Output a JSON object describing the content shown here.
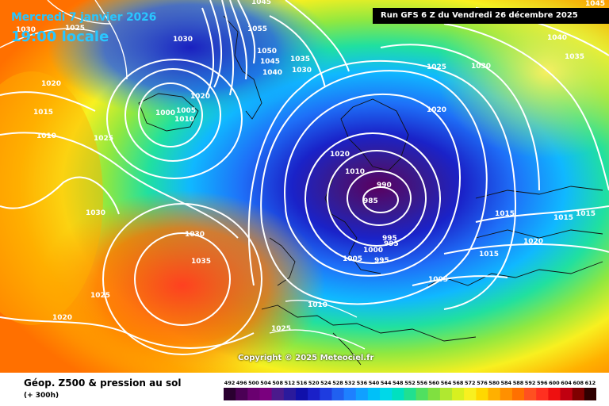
{
  "map": {
    "title_date": "Mercredi 7 janvier 2026",
    "title_time": "19:00 locale",
    "run_info": "Run GFS 6 Z du Vendredi 26 décembre 2025",
    "copyright": "Copyright © 2025 Meteociel.fr",
    "legend_title": "Géop. Z500 & pression au sol",
    "legend_subtitle": "(+ 300h)",
    "pressure_labels": [
      {
        "id": "p1",
        "text": "1030"
      },
      {
        "id": "p2",
        "text": "1025"
      },
      {
        "id": "p3",
        "text": "1020"
      },
      {
        "id": "p4",
        "text": "1015"
      },
      {
        "id": "p5",
        "text": "1010"
      },
      {
        "id": "p6",
        "text": "1025"
      },
      {
        "id": "p7",
        "text": "1000"
      },
      {
        "id": "p8",
        "text": "1005"
      },
      {
        "id": "p9",
        "text": "1010"
      },
      {
        "id": "p10",
        "text": "1020"
      },
      {
        "id": "p11",
        "text": "1055"
      },
      {
        "id": "p12",
        "text": "1050"
      },
      {
        "id": "p13",
        "text": "1045"
      },
      {
        "id": "p14",
        "text": "1040"
      },
      {
        "id": "p15",
        "text": "1035"
      },
      {
        "id": "p16",
        "text": "1030"
      },
      {
        "id": "p17",
        "text": "1045"
      },
      {
        "id": "p18",
        "text": "1025"
      },
      {
        "id": "p19",
        "text": "1030"
      },
      {
        "id": "p20",
        "text": "1040"
      },
      {
        "id": "p21",
        "text": "1035"
      },
      {
        "id": "p22",
        "text": "1045"
      },
      {
        "id": "p23",
        "text": "1020"
      },
      {
        "id": "p24",
        "text": "1020"
      },
      {
        "id": "p25",
        "text": "1010"
      },
      {
        "id": "p26",
        "text": "990"
      },
      {
        "id": "p27",
        "text": "985"
      },
      {
        "id": "p28",
        "text": "995"
      },
      {
        "id": "p29",
        "text": "995"
      },
      {
        "id": "p30",
        "text": "1000"
      },
      {
        "id": "p31",
        "text": "995"
      },
      {
        "id": "p32",
        "text": "1005"
      },
      {
        "id": "p33",
        "text": "1005"
      },
      {
        "id": "p34",
        "text": "1015"
      },
      {
        "id": "p35",
        "text": "1015"
      },
      {
        "id": "p36",
        "text": "1015"
      },
      {
        "id": "p37",
        "text": "1020"
      },
      {
        "id": "p38",
        "text": "1015"
      },
      {
        "id": "p39",
        "text": "1030"
      },
      {
        "id": "p40",
        "text": "1030"
      },
      {
        "id": "p41",
        "text": "1035"
      },
      {
        "id": "p42",
        "text": "1025"
      },
      {
        "id": "p43",
        "text": "1020"
      },
      {
        "id": "p44",
        "text": "1010"
      },
      {
        "id": "p45",
        "text": "1025"
      },
      {
        "id": "p46",
        "text": "1030"
      }
    ]
  },
  "scale": {
    "values": [
      "492",
      "496",
      "500",
      "504",
      "508",
      "512",
      "516",
      "520",
      "524",
      "528",
      "532",
      "536",
      "540",
      "544",
      "548",
      "552",
      "556",
      "560",
      "564",
      "568",
      "572",
      "576",
      "580",
      "584",
      "588",
      "592",
      "596",
      "600",
      "604",
      "608",
      "612"
    ],
    "colors": [
      "#2a0030",
      "#4b0055",
      "#6a0070",
      "#7a007e",
      "#4b1a8c",
      "#2a1a9c",
      "#1010aa",
      "#1a20c8",
      "#1e3ce0",
      "#2060f0",
      "#1e80ff",
      "#10a0ff",
      "#00c0f8",
      "#00d8e8",
      "#00e0c0",
      "#20e090",
      "#50e060",
      "#80e040",
      "#b0e830",
      "#d8f020",
      "#f8f020",
      "#ffd800",
      "#ffb000",
      "#ff9000",
      "#ff7000",
      "#ff5020",
      "#ff3020",
      "#ee1010",
      "#c00010",
      "#800000",
      "#300000"
    ]
  }
}
